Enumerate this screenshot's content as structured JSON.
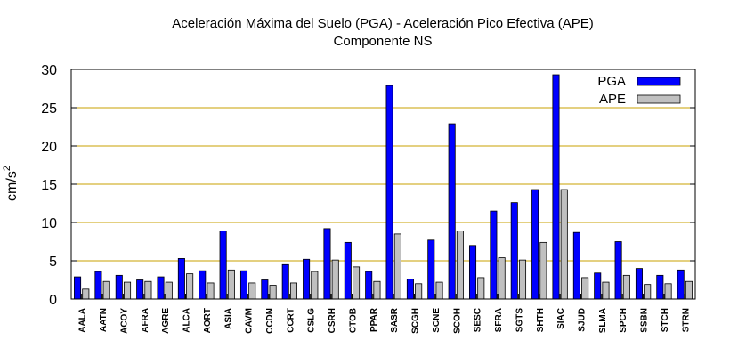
{
  "chart_data": {
    "type": "bar",
    "title": "Aceleración Máxima del Suelo (PGA) -  Aceleración Pico Efectiva (APE)",
    "subtitle": "Componente NS",
    "ylabel": "cm/s",
    "ylabel_sup": "2",
    "xlabel": "",
    "ylim": [
      0,
      30
    ],
    "yticks": [
      0,
      5,
      10,
      15,
      20,
      25,
      30
    ],
    "grid": true,
    "legend_position": "top-right",
    "colors": {
      "PGA": "#0000ff",
      "APE": "#c0c0c0",
      "grid": "#c8a000"
    },
    "categories": [
      "AALA",
      "AATN",
      "ACOY",
      "AFRA",
      "AGRE",
      "ALCA",
      "AORT",
      "ASIA",
      "CAVM",
      "CCDN",
      "CCRT",
      "CSLG",
      "CSRH",
      "CTOB",
      "PPAR",
      "SASR",
      "SCGH",
      "SCNE",
      "SCOH",
      "SESC",
      "SFRA",
      "SGTS",
      "SHTH",
      "SIAC",
      "SJUD",
      "SLMA",
      "SPCH",
      "SSBN",
      "STCH",
      "STRN"
    ],
    "series": [
      {
        "name": "PGA",
        "values": [
          2.9,
          3.6,
          3.1,
          2.5,
          2.9,
          5.3,
          3.7,
          8.9,
          3.7,
          2.5,
          4.5,
          5.2,
          9.2,
          7.4,
          3.6,
          27.9,
          2.6,
          7.7,
          22.9,
          7.0,
          11.5,
          12.6,
          14.3,
          29.3,
          8.7,
          3.4,
          7.5,
          4.0,
          3.1,
          3.8
        ]
      },
      {
        "name": "APE",
        "values": [
          1.3,
          2.3,
          2.2,
          2.3,
          2.2,
          3.3,
          2.1,
          3.8,
          2.1,
          1.8,
          2.1,
          3.6,
          5.1,
          4.2,
          2.3,
          8.5,
          2.0,
          2.2,
          8.9,
          2.8,
          5.4,
          5.1,
          7.4,
          14.3,
          2.8,
          2.2,
          3.1,
          1.9,
          2.0,
          2.3
        ]
      }
    ]
  }
}
